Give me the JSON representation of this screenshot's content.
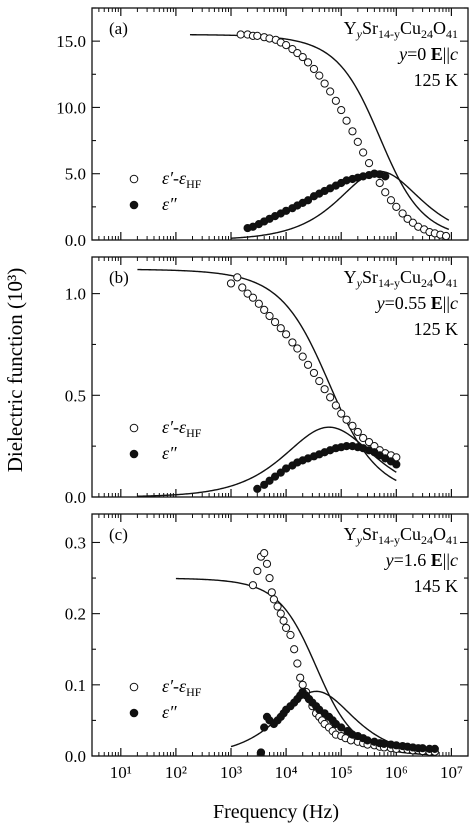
{
  "figure": {
    "ylabel": "Dielectric function (10³)",
    "xlabel": "Frequency (Hz)"
  },
  "chart_data": [
    {
      "type": "scatter",
      "panel_label": "(a)",
      "x_scale": "log",
      "xlim": [
        3,
        20000000
      ],
      "ylim": [
        0,
        17.5
      ],
      "x_ticks": [
        10,
        100,
        1000,
        10000,
        100000,
        1000000,
        10000000
      ],
      "y_ticks": [
        0.0,
        5.0,
        10.0,
        15.0
      ],
      "y_tick_labels": [
        "0.0",
        "5.0",
        "10.0",
        "15.0"
      ],
      "annotation": {
        "formula": "Y",
        "formula_sub1": "y",
        "formula_mid": "Sr",
        "formula_sub2": "14-y",
        "formula_cu": "Cu",
        "formula_sub3": "24",
        "formula_o": "O",
        "formula_sub4": "41",
        "condition_y": "y=0",
        "field": "E",
        "parallel": "||",
        "axis": "c",
        "temperature": "125 K"
      },
      "legend": {
        "position": "middle-left",
        "entries": [
          "ε′-ε_HF",
          "ε″"
        ]
      },
      "series": [
        {
          "name": "ε′-ε_HF",
          "marker": "open-circle",
          "x": [
            1500,
            2000,
            2500,
            3000,
            4000,
            5000,
            6500,
            8000,
            10000,
            13000,
            16000,
            20000,
            25000,
            32000,
            40000,
            50000,
            63000,
            80000,
            100000,
            125000,
            160000,
            200000,
            250000,
            320000,
            400000,
            500000,
            630000,
            800000,
            1000000,
            1300000,
            1600000,
            2000000,
            2500000,
            3200000,
            4000000,
            5000000,
            6300000,
            8000000
          ],
          "y": [
            15.5,
            15.5,
            15.4,
            15.4,
            15.3,
            15.2,
            15.1,
            14.9,
            14.7,
            14.4,
            14.1,
            13.8,
            13.4,
            12.9,
            12.4,
            11.8,
            11.2,
            10.5,
            9.8,
            9.0,
            8.2,
            7.4,
            6.6,
            5.8,
            5.0,
            4.3,
            3.6,
            3.0,
            2.5,
            2.0,
            1.6,
            1.3,
            1.0,
            0.8,
            0.6,
            0.5,
            0.4,
            0.3
          ]
        },
        {
          "name": "ε″",
          "marker": "filled-circle",
          "x": [
            2000,
            2500,
            3200,
            4000,
            5000,
            6300,
            8000,
            10000,
            13000,
            16000,
            20000,
            25000,
            32000,
            40000,
            50000,
            63000,
            80000,
            100000,
            125000,
            160000,
            200000,
            250000,
            320000,
            400000,
            500000,
            630000
          ],
          "y": [
            0.9,
            1.0,
            1.2,
            1.4,
            1.6,
            1.8,
            2.0,
            2.2,
            2.4,
            2.6,
            2.8,
            3.0,
            3.3,
            3.5,
            3.7,
            3.9,
            4.1,
            4.3,
            4.5,
            4.6,
            4.7,
            4.8,
            4.9,
            5.0,
            4.95,
            4.8
          ]
        }
      ],
      "fit": {
        "eps_s": 15.5,
        "tau_s": 3.18e-07,
        "alpha": 0.25,
        "x_start": 180,
        "x_end": 9000000,
        "imag_x_start": 1000
      }
    },
    {
      "type": "scatter",
      "panel_label": "(b)",
      "x_scale": "log",
      "xlim": [
        3,
        20000000
      ],
      "ylim": [
        0,
        1.18
      ],
      "x_ticks": [
        10,
        100,
        1000,
        10000,
        100000,
        1000000,
        10000000
      ],
      "y_ticks": [
        0.0,
        0.5,
        1.0
      ],
      "y_tick_labels": [
        "0.0",
        "0.5",
        "1.0"
      ],
      "annotation": {
        "formula": "Y",
        "formula_sub1": "y",
        "formula_mid": "Sr",
        "formula_sub2": "14-y",
        "formula_cu": "Cu",
        "formula_sub3": "24",
        "formula_o": "O",
        "formula_sub4": "41",
        "condition_y": "y=0.55",
        "field": "E",
        "parallel": "||",
        "axis": "c",
        "temperature": "125 K"
      },
      "legend": {
        "position": "middle-left",
        "entries": [
          "ε′-ε_HF",
          "ε″"
        ]
      },
      "series": [
        {
          "name": "ε′-ε_HF",
          "marker": "open-circle",
          "x": [
            1000,
            1300,
            1600,
            2000,
            2500,
            3200,
            4000,
            5000,
            6300,
            8000,
            10000,
            13000,
            16000,
            20000,
            25000,
            32000,
            40000,
            50000,
            63000,
            80000,
            100000,
            125000,
            160000,
            200000,
            250000,
            320000,
            400000,
            500000,
            630000,
            800000,
            1000000
          ],
          "y": [
            1.05,
            1.08,
            1.03,
            1.0,
            0.98,
            0.95,
            0.92,
            0.89,
            0.86,
            0.83,
            0.8,
            0.76,
            0.73,
            0.69,
            0.65,
            0.61,
            0.57,
            0.53,
            0.49,
            0.45,
            0.41,
            0.38,
            0.35,
            0.32,
            0.29,
            0.27,
            0.25,
            0.23,
            0.215,
            0.205,
            0.195
          ]
        },
        {
          "name": "ε″",
          "marker": "filled-circle",
          "x": [
            3000,
            4000,
            5000,
            6300,
            8000,
            10000,
            13000,
            16000,
            20000,
            25000,
            32000,
            40000,
            50000,
            63000,
            80000,
            100000,
            125000,
            160000,
            200000,
            250000,
            320000,
            400000,
            500000,
            630000,
            800000,
            1000000
          ],
          "y": [
            0.04,
            0.06,
            0.08,
            0.1,
            0.12,
            0.14,
            0.155,
            0.17,
            0.18,
            0.19,
            0.2,
            0.21,
            0.22,
            0.23,
            0.24,
            0.245,
            0.25,
            0.25,
            0.245,
            0.24,
            0.23,
            0.22,
            0.205,
            0.19,
            0.175,
            0.16
          ]
        }
      ],
      "fit": {
        "eps_s": 1.12,
        "tau_s": 2.65e-06,
        "alpha": 0.3,
        "x_start": 20,
        "x_end": 1000000,
        "imag_x_start": 20
      }
    },
    {
      "type": "scatter",
      "panel_label": "(c)",
      "x_scale": "log",
      "xlim": [
        3,
        20000000
      ],
      "ylim": [
        0,
        0.34
      ],
      "x_ticks": [
        10,
        100,
        1000,
        10000,
        100000,
        1000000,
        10000000
      ],
      "x_tick_labels": [
        "10¹",
        "10²",
        "10³",
        "10⁴",
        "10⁵",
        "10⁶",
        "10⁷"
      ],
      "y_ticks": [
        0.0,
        0.1,
        0.2,
        0.3
      ],
      "y_tick_labels": [
        "0.0",
        "0.1",
        "0.2",
        "0.3"
      ],
      "annotation": {
        "formula": "Y",
        "formula_sub1": "y",
        "formula_mid": "Sr",
        "formula_sub2": "14-y",
        "formula_cu": "Cu",
        "formula_sub3": "24",
        "formula_o": "O",
        "formula_sub4": "41",
        "condition_y": "y=1.6",
        "field": "E",
        "parallel": "||",
        "axis": "c",
        "temperature": "145 K"
      },
      "legend": {
        "position": "bottom-left",
        "entries": [
          "ε′-ε_HF",
          "ε″"
        ]
      },
      "series": [
        {
          "name": "ε′-ε_HF",
          "marker": "open-circle",
          "x": [
            2500,
            3000,
            3500,
            4000,
            4500,
            5000,
            5500,
            6000,
            7000,
            8000,
            9000,
            10000,
            12000,
            14000,
            16000,
            18000,
            20000,
            23000,
            26000,
            30000,
            35000,
            40000,
            45000,
            50000,
            60000,
            70000,
            80000,
            100000,
            120000,
            150000,
            200000,
            250000,
            300000,
            400000,
            500000,
            600000,
            800000,
            1000000,
            1300000,
            1600000,
            2000000,
            2500000,
            3000000,
            4000000,
            5000000
          ],
          "y": [
            0.24,
            0.26,
            0.28,
            0.285,
            0.27,
            0.25,
            0.23,
            0.22,
            0.21,
            0.2,
            0.19,
            0.18,
            0.17,
            0.15,
            0.13,
            0.11,
            0.1,
            0.09,
            0.08,
            0.07,
            0.06,
            0.055,
            0.05,
            0.045,
            0.04,
            0.035,
            0.03,
            0.028,
            0.025,
            0.022,
            0.02,
            0.018,
            0.016,
            0.015,
            0.013,
            0.012,
            0.011,
            0.01,
            0.01,
            0.009,
            0.008,
            0.008,
            0.007,
            0.006,
            0.006
          ]
        },
        {
          "name": "ε″",
          "marker": "filled-circle",
          "x": [
            3500,
            4000,
            4500,
            5000,
            6000,
            7000,
            8000,
            9000,
            10000,
            12000,
            14000,
            16000,
            18000,
            20000,
            23000,
            26000,
            30000,
            35000,
            40000,
            50000,
            60000,
            70000,
            80000,
            100000,
            130000,
            160000,
            200000,
            250000,
            300000,
            400000,
            500000,
            600000,
            800000,
            1000000,
            1300000,
            1600000,
            2000000,
            2500000,
            3000000,
            4000000,
            5000000
          ],
          "y": [
            0.005,
            0.04,
            0.055,
            0.05,
            0.045,
            0.05,
            0.055,
            0.06,
            0.065,
            0.07,
            0.075,
            0.08,
            0.085,
            0.09,
            0.085,
            0.08,
            0.075,
            0.07,
            0.065,
            0.06,
            0.055,
            0.05,
            0.045,
            0.04,
            0.035,
            0.03,
            0.028,
            0.025,
            0.022,
            0.02,
            0.018,
            0.017,
            0.016,
            0.015,
            0.014,
            0.013,
            0.012,
            0.011,
            0.011,
            0.01,
            0.01
          ]
        }
      ],
      "fit": {
        "eps_s": 0.25,
        "tau_s": 4.5e-06,
        "alpha": 0.2,
        "x_start": 100,
        "x_end": 5000000,
        "imag_x_start": 1000
      }
    }
  ]
}
